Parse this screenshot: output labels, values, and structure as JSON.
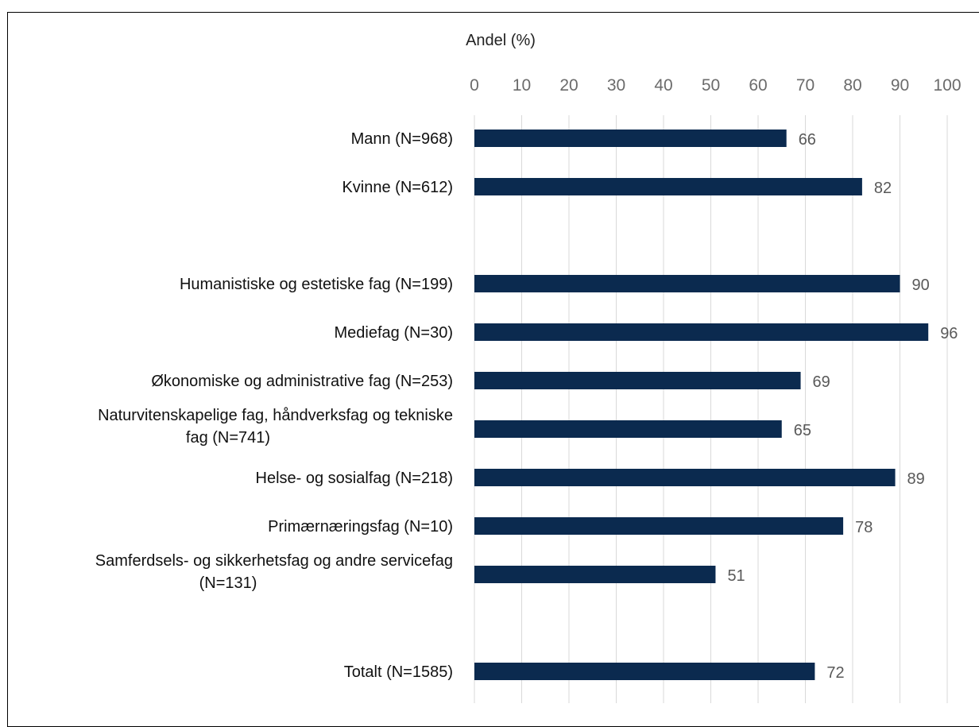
{
  "chart_data": {
    "type": "bar",
    "orientation": "horizontal",
    "xlabel": "Andel (%)",
    "xlim": [
      0,
      100
    ],
    "x_ticks": [
      0,
      10,
      20,
      30,
      40,
      50,
      60,
      70,
      80,
      90,
      100
    ],
    "grid": true,
    "bar_color": "#0b2a4f",
    "categories": [
      {
        "label": [
          "Mann (N=968)"
        ],
        "value": 66,
        "row": 0
      },
      {
        "label": [
          "Kvinne (N=612)"
        ],
        "value": 82,
        "row": 1
      },
      {
        "label": [
          "Humanistiske og estetiske fag (N=199)"
        ],
        "value": 90,
        "row": 3
      },
      {
        "label": [
          "Mediefag (N=30)"
        ],
        "value": 96,
        "row": 4
      },
      {
        "label": [
          "Økonomiske og administrative fag (N=253)"
        ],
        "value": 69,
        "row": 5
      },
      {
        "label": [
          "Naturvitenskapelige fag, håndverksfag og tekniske",
          "fag (N=741)"
        ],
        "value": 65,
        "row": 6
      },
      {
        "label": [
          "Helse- og sosialfag (N=218)"
        ],
        "value": 89,
        "row": 7
      },
      {
        "label": [
          "Primærnæringsfag (N=10)"
        ],
        "value": 78,
        "row": 8
      },
      {
        "label": [
          "Samferdsels- og sikkerhetsfag og andre servicefag",
          "(N=131)"
        ],
        "value": 51,
        "row": 9
      },
      {
        "label": [
          "Totalt (N=1585)"
        ],
        "value": 72,
        "row": 11
      }
    ]
  }
}
